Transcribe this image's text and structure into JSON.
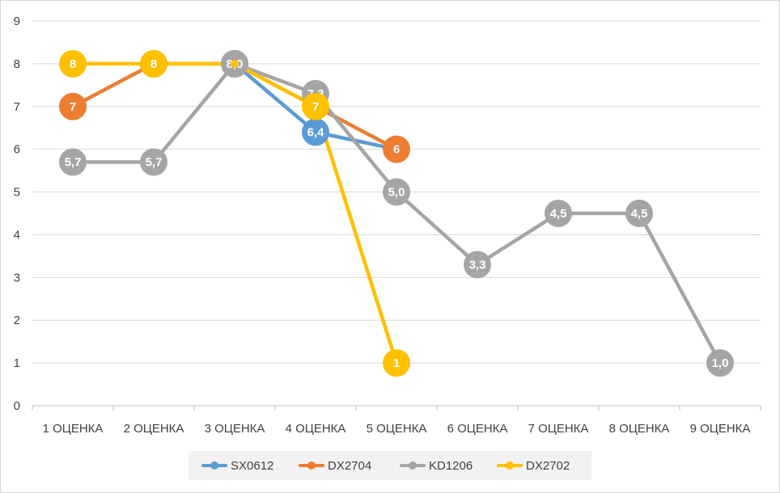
{
  "chart_data": {
    "type": "line",
    "categories": [
      "1 ОЦЕНКА",
      "2 ОЦЕНКА",
      "3 ОЦЕНКА",
      "4 ОЦЕНКА",
      "5 ОЦЕНКА",
      "6 ОЦЕНКА",
      "7 ОЦЕНКА",
      "8 ОЦЕНКА",
      "9 ОЦЕНКА"
    ],
    "ylim": [
      0,
      9
    ],
    "yticks": [
      "0",
      "1",
      "2",
      "3",
      "4",
      "5",
      "6",
      "7",
      "8",
      "9"
    ],
    "grid": true,
    "legend_position": "bottom",
    "series": [
      {
        "name": "SX0612",
        "color": "#5B9BD5",
        "values": [
          null,
          null,
          8.0,
          6.4,
          6.0,
          null,
          null,
          null,
          null
        ],
        "labels": [
          null,
          null,
          "8",
          "6,4",
          null,
          null,
          null,
          null,
          null
        ]
      },
      {
        "name": "DX2704",
        "color": "#ED7D31",
        "values": [
          7,
          8,
          8,
          7,
          6,
          null,
          null,
          null,
          null
        ],
        "labels": [
          "7",
          "8",
          null,
          null,
          "6",
          null,
          null,
          null,
          null
        ]
      },
      {
        "name": "KD1206",
        "color": "#A5A5A5",
        "values": [
          5.7,
          5.7,
          8.0,
          7.3,
          5.0,
          3.3,
          4.5,
          4.5,
          1.0
        ],
        "labels": [
          "5,7",
          "5,7",
          "8,0",
          "7,3",
          "5,0",
          "3,3",
          "4,5",
          "4,5",
          "1,0"
        ]
      },
      {
        "name": "DX2702",
        "color": "#FFC000",
        "values": [
          8,
          8,
          8,
          7,
          1,
          null,
          null,
          null,
          null
        ],
        "labels": [
          "8",
          "8",
          null,
          "7",
          "1",
          null,
          null,
          null,
          null
        ]
      }
    ]
  }
}
